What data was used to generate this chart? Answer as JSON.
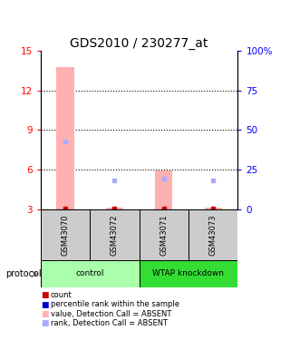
{
  "title": "GDS2010 / 230277_at",
  "samples": [
    "GSM43070",
    "GSM43072",
    "GSM43071",
    "GSM43073"
  ],
  "groups": [
    {
      "label": "control",
      "color": "#aaffaa",
      "samples": [
        0,
        1
      ]
    },
    {
      "label": "WTAP knockdown",
      "color": "#33dd33",
      "samples": [
        2,
        3
      ]
    }
  ],
  "ylim_left": [
    3,
    15
  ],
  "yticks_left": [
    3,
    6,
    9,
    12,
    15
  ],
  "ylim_right": [
    0,
    100
  ],
  "yticks_right": [
    0,
    25,
    50,
    75,
    100
  ],
  "ytick_labels_right": [
    "0",
    "25",
    "50",
    "75",
    "100%"
  ],
  "bar_color_absent": "#ffb0b0",
  "rank_color_absent": "#aaaaff",
  "count_color": "#cc0000",
  "bar_bottom": 3,
  "bars": [
    {
      "x": 0,
      "value": 13.8,
      "absent": true
    },
    {
      "x": 1,
      "value": 3.08,
      "absent": true
    },
    {
      "x": 2,
      "value": 5.95,
      "absent": true
    },
    {
      "x": 3,
      "value": 3.08,
      "absent": true
    }
  ],
  "ranks_pct": [
    {
      "x": 0,
      "rank_pct": 43,
      "absent": true
    },
    {
      "x": 1,
      "rank_pct": 18,
      "absent": true
    },
    {
      "x": 2,
      "rank_pct": 19,
      "absent": true
    },
    {
      "x": 3,
      "rank_pct": 18,
      "absent": true
    }
  ],
  "legend_items": [
    {
      "color": "#cc0000",
      "label": "count"
    },
    {
      "color": "#0000cc",
      "label": "percentile rank within the sample"
    },
    {
      "color": "#ffb0b0",
      "label": "value, Detection Call = ABSENT"
    },
    {
      "color": "#aaaaff",
      "label": "rank, Detection Call = ABSENT"
    }
  ],
  "sample_box_color": "#cccccc",
  "protocol_label": "protocol",
  "title_fontsize": 10,
  "tick_fontsize": 7.5,
  "bar_width": 0.35
}
